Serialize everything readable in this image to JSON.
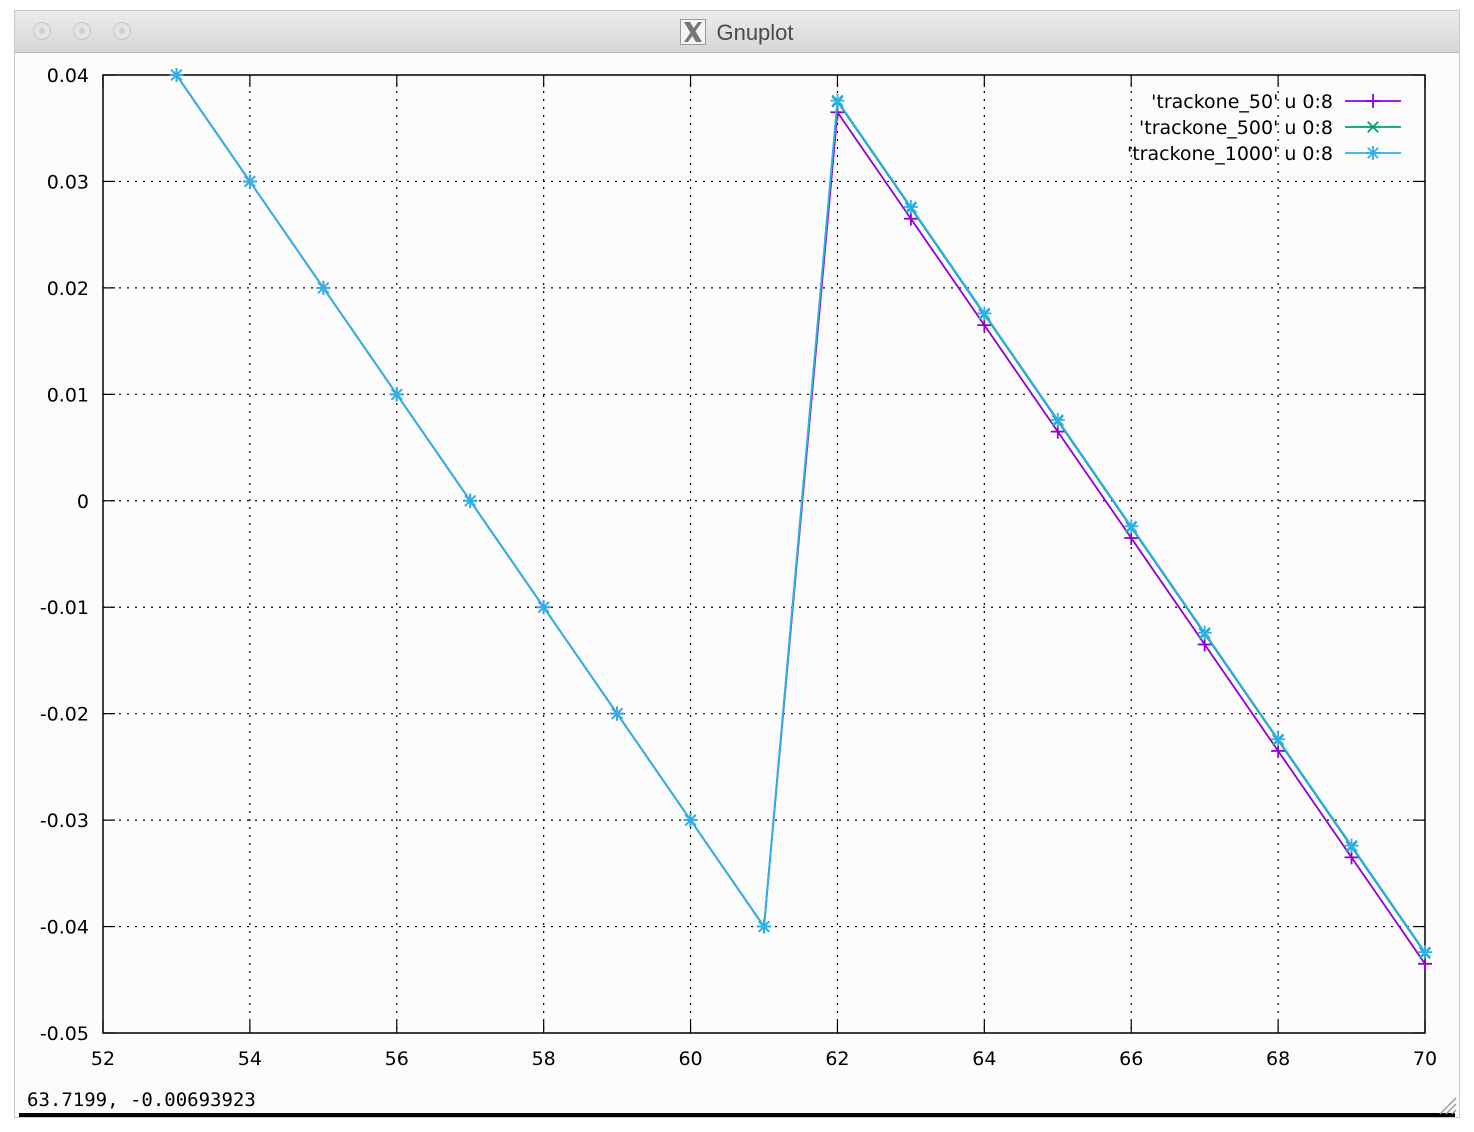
{
  "window": {
    "title": "Gnuplot"
  },
  "status": {
    "coords": "63.7199, -0.00693923"
  },
  "chart_data": {
    "type": "line",
    "xlim": [
      52,
      70
    ],
    "ylim": [
      -0.05,
      0.04
    ],
    "xticks": [
      52,
      54,
      56,
      58,
      60,
      62,
      64,
      66,
      68,
      70
    ],
    "yticks": [
      -0.05,
      -0.04,
      -0.03,
      -0.02,
      -0.01,
      0,
      0.01,
      0.02,
      0.03,
      0.04
    ],
    "xtick_labels": [
      "52",
      "54",
      "56",
      "58",
      "60",
      "62",
      "64",
      "66",
      "68",
      "70"
    ],
    "ytick_labels": [
      "-0.05",
      "-0.04",
      "-0.03",
      "-0.02",
      "-0.01",
      "0",
      "0.01",
      "0.02",
      "0.03",
      "0.04"
    ],
    "grid": true,
    "legend_position": "top-right",
    "series": [
      {
        "name": "'trackone_50' u 0:8",
        "color": "#9400d3",
        "marker": "plus",
        "x": [
          53,
          54,
          55,
          56,
          57,
          58,
          59,
          60,
          61,
          62,
          63,
          64,
          65,
          66,
          67,
          68,
          69,
          70
        ],
        "y": [
          0.04,
          0.03,
          0.02,
          0.01,
          0,
          -0.01,
          -0.02,
          -0.03,
          -0.04,
          0.0365,
          0.0265,
          0.0165,
          0.0065,
          -0.0035,
          -0.0135,
          -0.0235,
          -0.0335,
          -0.0435
        ]
      },
      {
        "name": "'trackone_500' u 0:8",
        "color": "#009e73",
        "marker": "cross",
        "x": [
          53,
          54,
          55,
          56,
          57,
          58,
          59,
          60,
          61,
          62,
          63,
          64,
          65,
          66,
          67,
          68,
          69,
          70
        ],
        "y": [
          0.04,
          0.03,
          0.02,
          0.01,
          0,
          -0.01,
          -0.02,
          -0.03,
          -0.04,
          0.0375,
          0.0275,
          0.0175,
          0.0075,
          -0.0025,
          -0.0125,
          -0.0225,
          -0.0325,
          -0.0425
        ]
      },
      {
        "name": "'trackone_1000' u 0:8",
        "color": "#2fb0e8",
        "marker": "star",
        "x": [
          53,
          54,
          55,
          56,
          57,
          58,
          59,
          60,
          61,
          62,
          63,
          64,
          65,
          66,
          67,
          68,
          69,
          70
        ],
        "y": [
          0.04,
          0.03,
          0.02,
          0.01,
          0,
          -0.01,
          -0.02,
          -0.03,
          -0.04,
          0.0376,
          0.0276,
          0.0176,
          0.0076,
          -0.0024,
          -0.0124,
          -0.0224,
          -0.0324,
          -0.0424
        ]
      }
    ]
  }
}
